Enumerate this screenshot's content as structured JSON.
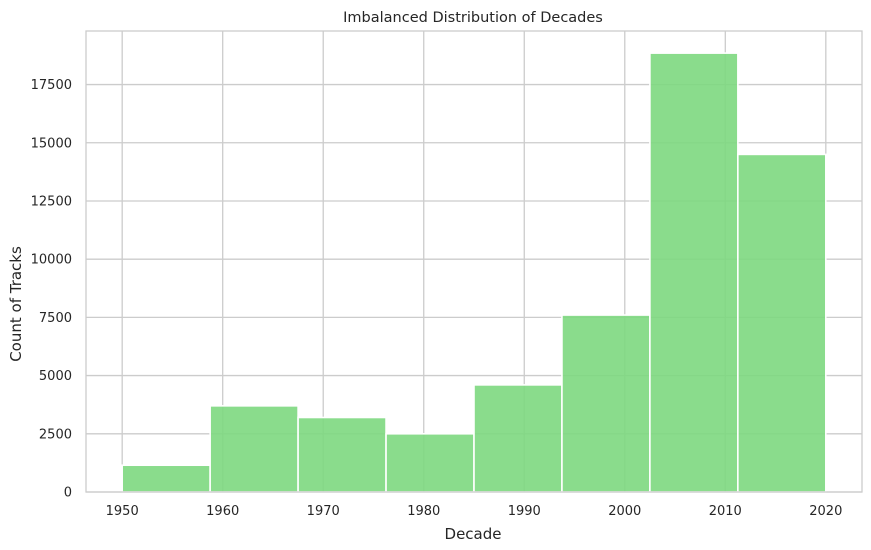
{
  "chart_data": {
    "type": "bar",
    "title": "Imbalanced Distribution of Decades",
    "xlabel": "Decade",
    "ylabel": "Count of Tracks",
    "bar_color": "#7dd87f",
    "grid": true,
    "xlim": [
      1946.4,
      2023.6
    ],
    "ylim": [
      0,
      19800
    ],
    "xticks": [
      1950,
      1960,
      1970,
      1980,
      1990,
      2000,
      2010,
      2020
    ],
    "yticks": [
      0,
      2500,
      5000,
      7500,
      10000,
      12500,
      15000,
      17500
    ],
    "bins": [
      {
        "x0": 1950,
        "x1": 1958.75,
        "value": 1150
      },
      {
        "x0": 1958.75,
        "x1": 1967.5,
        "value": 3700
      },
      {
        "x0": 1967.5,
        "x1": 1976.25,
        "value": 3200
      },
      {
        "x0": 1976.25,
        "x1": 1985,
        "value": 2500
      },
      {
        "x0": 1985,
        "x1": 1993.75,
        "value": 4600
      },
      {
        "x0": 1993.75,
        "x1": 2002.5,
        "value": 7600
      },
      {
        "x0": 2002.5,
        "x1": 2011.25,
        "value": 18850
      },
      {
        "x0": 2011.25,
        "x1": 2020,
        "value": 14500
      }
    ]
  }
}
